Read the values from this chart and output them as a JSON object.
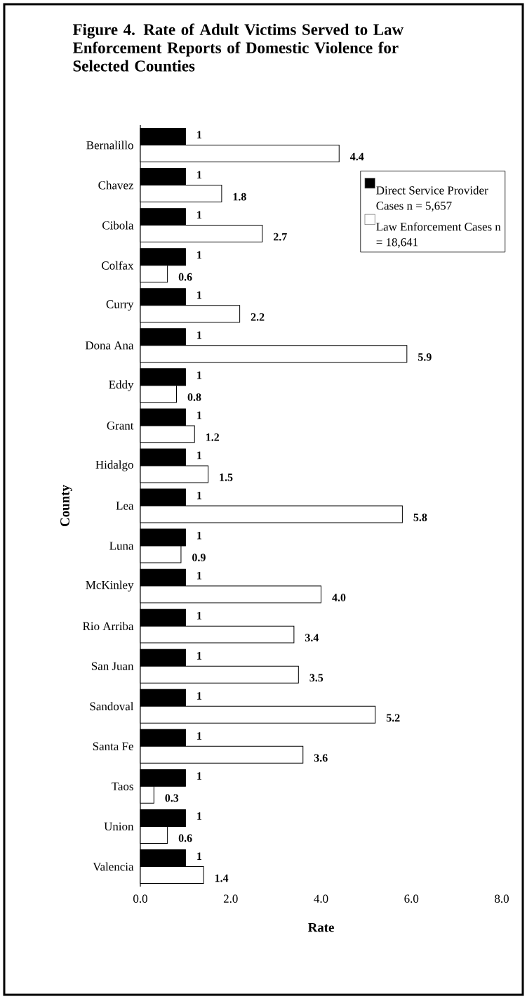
{
  "chart_data": {
    "type": "bar",
    "orientation": "horizontal",
    "title": "Figure 4.  Rate of Adult Victims Served to Law Enforcement Reports of Domestic Violence for Selected Counties",
    "xlabel": "Rate",
    "ylabel": "County",
    "categories": [
      "Bernalillo",
      "Chavez",
      "Cibola",
      "Colfax",
      "Curry",
      "Dona Ana",
      "Eddy",
      "Grant",
      "Hidalgo",
      "Lea",
      "Luna",
      "McKinley",
      "Rio Arriba",
      "San Juan",
      "Sandoval",
      "Santa Fe",
      "Taos",
      "Union",
      "Valencia"
    ],
    "series": [
      {
        "name": "Direct Service Provider Cases n = 5,657",
        "color": "#000000",
        "values": [
          1,
          1,
          1,
          1,
          1,
          1,
          1,
          1,
          1,
          1,
          1,
          1,
          1,
          1,
          1,
          1,
          1,
          1,
          1
        ],
        "value_labels": [
          "1",
          "1",
          "1",
          "1",
          "1",
          "1",
          "1",
          "1",
          "1",
          "1",
          "1",
          "1",
          "1",
          "1",
          "1",
          "1",
          "1",
          "1",
          "1"
        ]
      },
      {
        "name": "Law Enforcement Cases  n = 18,641",
        "color": "#ffffff",
        "values": [
          4.4,
          1.8,
          2.7,
          0.6,
          2.2,
          5.9,
          0.8,
          1.2,
          1.5,
          5.8,
          0.9,
          4.0,
          3.4,
          3.5,
          5.2,
          3.6,
          0.3,
          0.6,
          1.4
        ],
        "value_labels": [
          "4.4",
          "1.8",
          "2.7",
          "0.6",
          "2.2",
          "5.9",
          "0.8",
          "1.2",
          "1.5",
          "5.8",
          "0.9",
          "4.0",
          "3.4",
          "3.5",
          "5.2",
          "3.6",
          "0.3",
          "0.6",
          "1.4"
        ]
      }
    ],
    "xlim": [
      0,
      8
    ],
    "xticks": [
      {
        "value": 0,
        "label": "0.0"
      },
      {
        "value": 2,
        "label": "2.0"
      },
      {
        "value": 4,
        "label": "4.0"
      },
      {
        "value": 6,
        "label": "6.0"
      },
      {
        "value": 8,
        "label": "8.0"
      }
    ],
    "legend": "top right"
  }
}
